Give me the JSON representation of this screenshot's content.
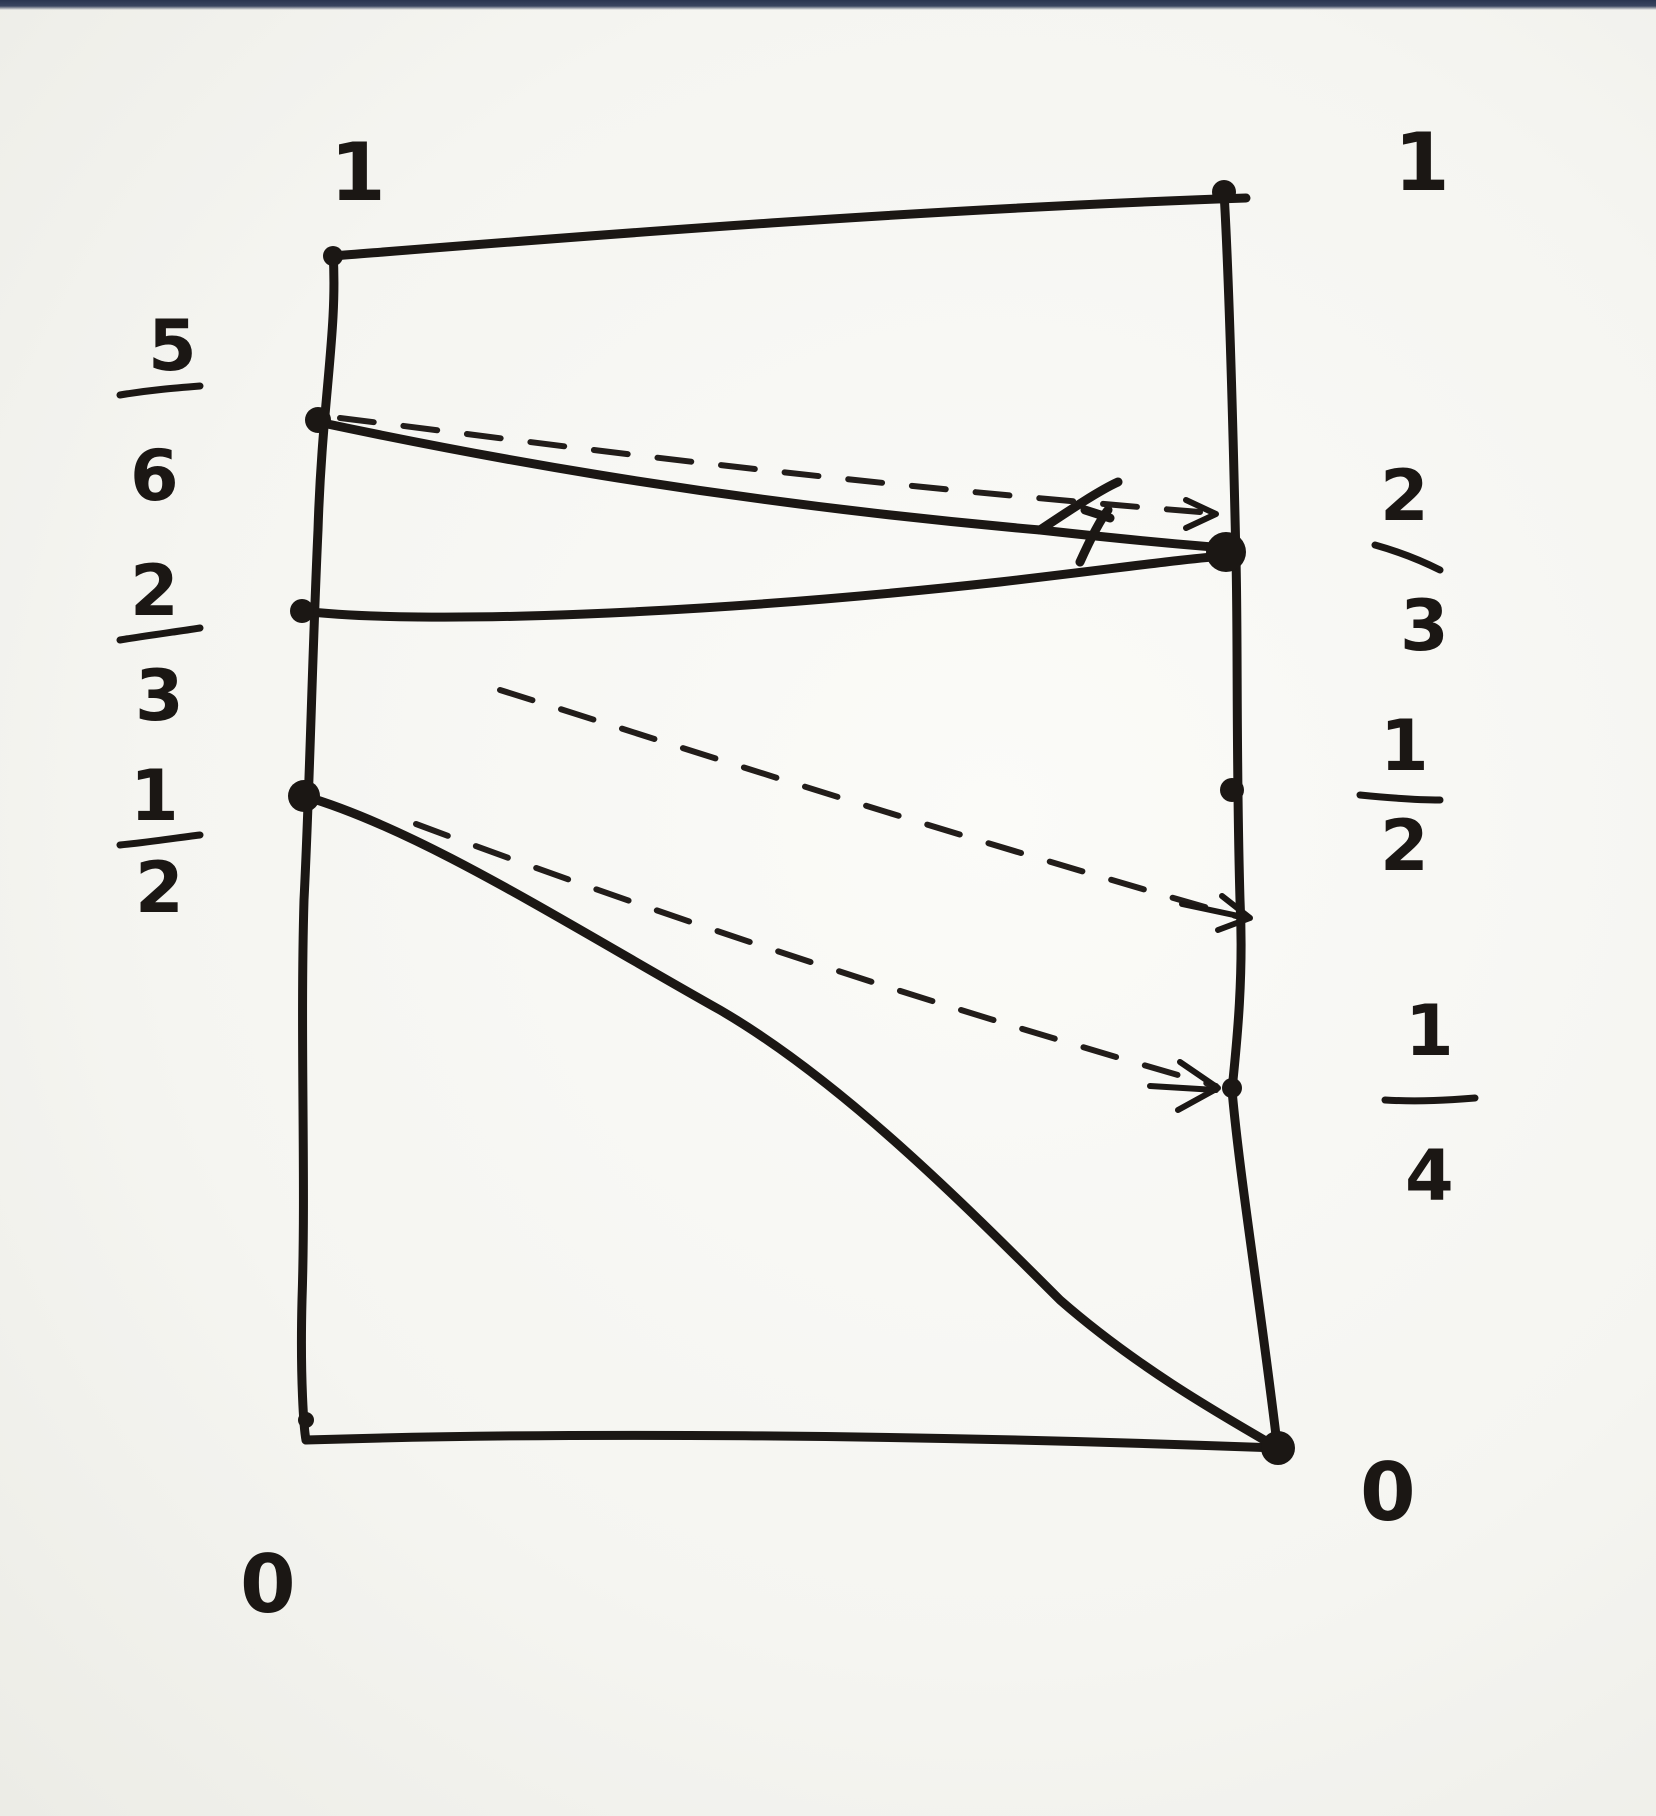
{
  "diagram": {
    "left_axis": {
      "top_label": "1",
      "bottom_label": "0",
      "marks": [
        {
          "num": "5",
          "den": "6",
          "value": 0.8333
        },
        {
          "num": "2",
          "den": "3",
          "value": 0.6667
        },
        {
          "num": "1",
          "den": "2",
          "value": 0.5
        }
      ]
    },
    "right_axis": {
      "top_label": "1",
      "bottom_label": "0",
      "marks": [
        {
          "num": "2",
          "den": "3",
          "value": 0.6667
        },
        {
          "num": "1",
          "den": "2",
          "value": 0.5
        },
        {
          "num": "1",
          "den": "4",
          "value": 0.25
        }
      ]
    },
    "solid_maps": [
      {
        "from": "1",
        "to": "1"
      },
      {
        "from": "5/6",
        "to": "2/3"
      },
      {
        "from": "2/3",
        "to": "2/3"
      },
      {
        "from": "1/2",
        "to": "0"
      },
      {
        "from": "0",
        "to": "0"
      }
    ],
    "dashed_maps": [
      {
        "from": "5/6",
        "to": "2/3"
      },
      {
        "from": "2/3",
        "to": "1/2"
      },
      {
        "from": "1/2",
        "to": "1/4"
      }
    ],
    "ink_color": "#1b1714",
    "paper_color": "#f7f7f3"
  }
}
